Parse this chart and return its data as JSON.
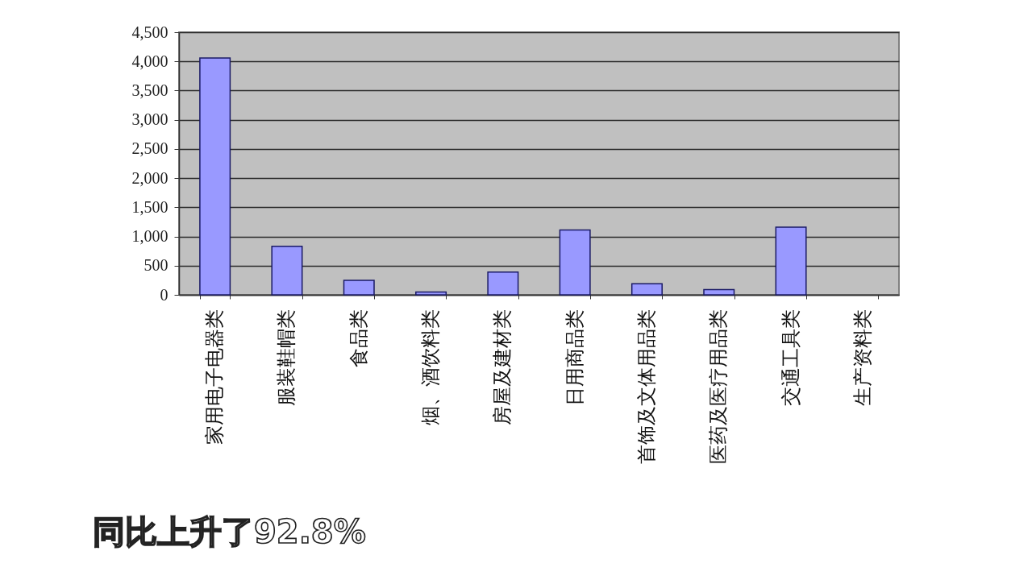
{
  "chart_data": {
    "type": "bar",
    "categories": [
      "家用电子电器类",
      "服装鞋帽类",
      "食品类",
      "烟、酒饮料类",
      "房屋及建材类",
      "日用商品类",
      "首饰及文体用品类",
      "医药及医疗用品类",
      "交通工具类",
      "生产资料类"
    ],
    "values": [
      4060,
      830,
      250,
      50,
      390,
      1110,
      190,
      90,
      1160,
      null
    ],
    "color": "#9999ff",
    "ylim": [
      0,
      4500
    ],
    "yticks": [
      0,
      500,
      {
        "value": 1000,
        "label": "1,000"
      },
      {
        "value": 1500,
        "label": "1,500"
      },
      {
        "value": 2000,
        "label": "2,000"
      },
      {
        "value": 2500,
        "label": "2,500"
      },
      {
        "value": 3000,
        "label": "3,000"
      },
      {
        "value": 3500,
        "label": "3,500"
      },
      {
        "value": 4000,
        "label": "4,000"
      },
      {
        "value": 4500,
        "label": "4,500"
      }
    ],
    "grid": "y",
    "annotations": [
      "同比上升了92.8%"
    ]
  }
}
